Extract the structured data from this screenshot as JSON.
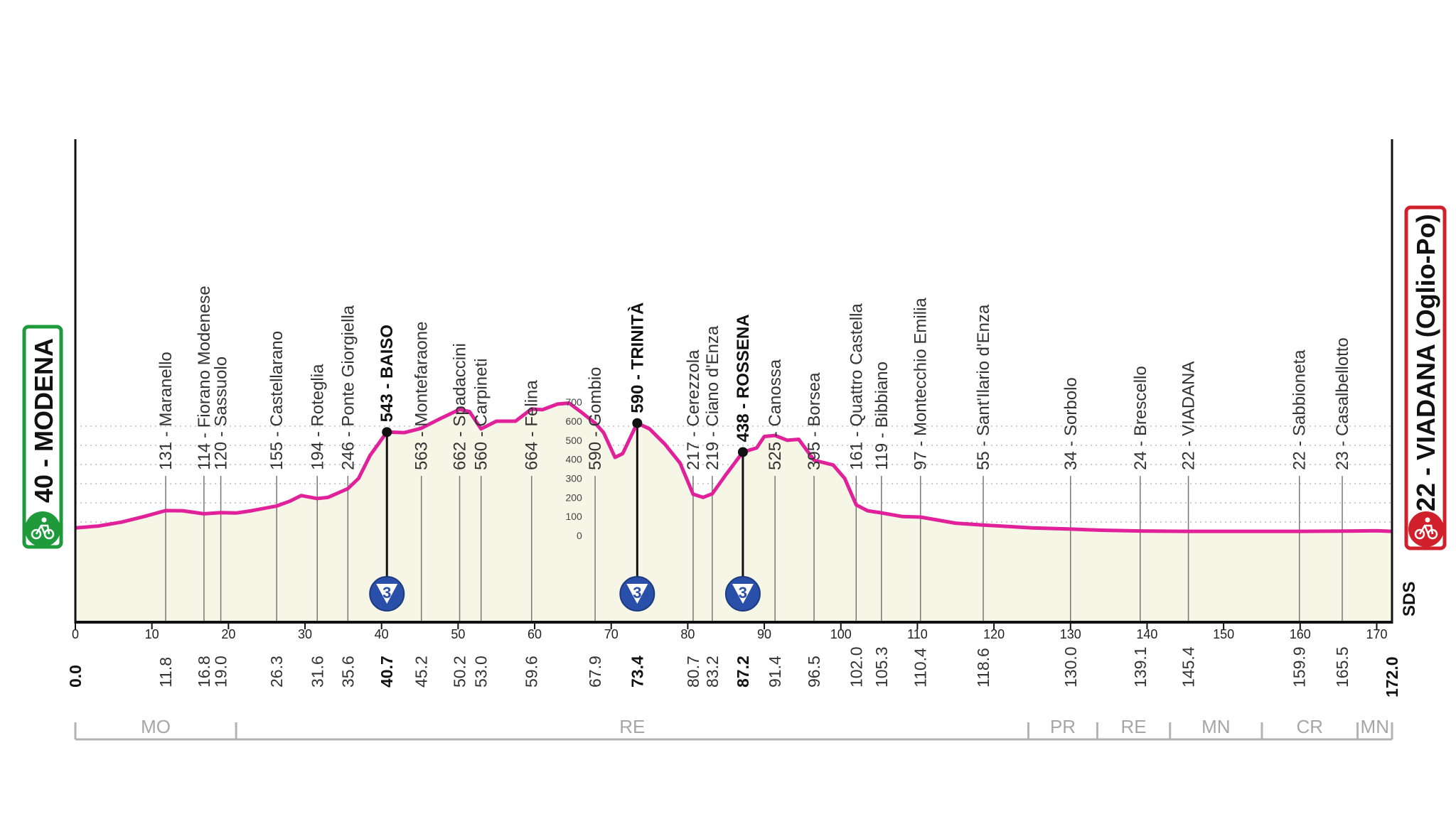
{
  "chart_data": {
    "type": "area",
    "start": {
      "name": "MODENA",
      "altitude": "40",
      "km": "0.0",
      "color": "#1f9a3a"
    },
    "finish": {
      "name": "VIADANA (Oglio-Po)",
      "altitude": "22",
      "km": "172.0",
      "color": "#d0202b"
    },
    "xlim": [
      0,
      172
    ],
    "ylim": [
      0,
      700
    ],
    "x_ticks": [
      0,
      10,
      20,
      30,
      40,
      50,
      60,
      70,
      80,
      90,
      100,
      110,
      120,
      130,
      140,
      150,
      160,
      170
    ],
    "altitude_ticks": [
      0,
      100,
      200,
      300,
      400,
      500,
      600,
      700
    ],
    "profile": [
      [
        0,
        40
      ],
      [
        3,
        50
      ],
      [
        6,
        70
      ],
      [
        9,
        100
      ],
      [
        11.8,
        131
      ],
      [
        14,
        130
      ],
      [
        16.8,
        114
      ],
      [
        19,
        120
      ],
      [
        21,
        118
      ],
      [
        23,
        130
      ],
      [
        26.3,
        155
      ],
      [
        28,
        180
      ],
      [
        29.5,
        210
      ],
      [
        31.6,
        194
      ],
      [
        33,
        200
      ],
      [
        35.6,
        246
      ],
      [
        37,
        300
      ],
      [
        38.5,
        420
      ],
      [
        40.7,
        543
      ],
      [
        43,
        540
      ],
      [
        45.2,
        563
      ],
      [
        47.5,
        610
      ],
      [
        50.2,
        662
      ],
      [
        51.5,
        650
      ],
      [
        53,
        560
      ],
      [
        55,
        600
      ],
      [
        57.5,
        600
      ],
      [
        59.6,
        664
      ],
      [
        61,
        660
      ],
      [
        63,
        690
      ],
      [
        64.5,
        695
      ],
      [
        66,
        650
      ],
      [
        67.9,
        590
      ],
      [
        69,
        540
      ],
      [
        70.5,
        410
      ],
      [
        71.5,
        430
      ],
      [
        73.4,
        590
      ],
      [
        75,
        560
      ],
      [
        77,
        480
      ],
      [
        79,
        380
      ],
      [
        80.7,
        217
      ],
      [
        82,
        200
      ],
      [
        83.2,
        219
      ],
      [
        85,
        320
      ],
      [
        87.2,
        438
      ],
      [
        89,
        460
      ],
      [
        90,
        520
      ],
      [
        91.4,
        525
      ],
      [
        93,
        500
      ],
      [
        94.5,
        505
      ],
      [
        96.5,
        395
      ],
      [
        99,
        370
      ],
      [
        100.5,
        300
      ],
      [
        102,
        161
      ],
      [
        103.5,
        130
      ],
      [
        105.3,
        119
      ],
      [
        108,
        100
      ],
      [
        110.4,
        97
      ],
      [
        115,
        65
      ],
      [
        118.6,
        55
      ],
      [
        125,
        40
      ],
      [
        130,
        34
      ],
      [
        134,
        28
      ],
      [
        139.1,
        24
      ],
      [
        145.4,
        22
      ],
      [
        150,
        22
      ],
      [
        155,
        22
      ],
      [
        159.9,
        22
      ],
      [
        165.5,
        23
      ],
      [
        170,
        25
      ],
      [
        172,
        22
      ]
    ],
    "waypoints": [
      {
        "km": "11.8",
        "km_value": 11.8,
        "alt": 131,
        "label": "131 - Maranello"
      },
      {
        "km": "16.8",
        "km_value": 16.8,
        "alt": 114,
        "label": "114 - Fiorano Modenese"
      },
      {
        "km": "19.0",
        "km_value": 19.0,
        "alt": 120,
        "label": "120 - Sassuolo"
      },
      {
        "km": "26.3",
        "km_value": 26.3,
        "alt": 155,
        "label": "155 - Castellarano"
      },
      {
        "km": "31.6",
        "km_value": 31.6,
        "alt": 194,
        "label": "194 - Roteglia"
      },
      {
        "km": "35.6",
        "km_value": 35.6,
        "alt": 246,
        "label": "246 - Ponte Giorgiella"
      },
      {
        "km": "40.7",
        "km_value": 40.7,
        "alt": 543,
        "label": "543 - BAISO",
        "climb": true,
        "category": "3"
      },
      {
        "km": "45.2",
        "km_value": 45.2,
        "alt": 563,
        "label": "563 - Montefaraone"
      },
      {
        "km": "50.2",
        "km_value": 50.2,
        "alt": 662,
        "label": "662 - Spadaccini"
      },
      {
        "km": "53.0",
        "km_value": 53.0,
        "alt": 560,
        "label": "560 - Carpineti"
      },
      {
        "km": "59.6",
        "km_value": 59.6,
        "alt": 664,
        "label": "664 - Felina"
      },
      {
        "km": "67.9",
        "km_value": 67.9,
        "alt": 590,
        "label": "590 - Gombio"
      },
      {
        "km": "73.4",
        "km_value": 73.4,
        "alt": 590,
        "label": "590 - TRINITÀ",
        "climb": true,
        "category": "3"
      },
      {
        "km": "80.7",
        "km_value": 80.7,
        "alt": 217,
        "label": "217 - Cerezzola"
      },
      {
        "km": "83.2",
        "km_value": 83.2,
        "alt": 219,
        "label": "219 - Ciano d'Enza"
      },
      {
        "km": "87.2",
        "km_value": 87.2,
        "alt": 438,
        "label": "438 - ROSSENA",
        "climb": true,
        "category": "3"
      },
      {
        "km": "91.4",
        "km_value": 91.4,
        "alt": 525,
        "label": "525 - Canossa"
      },
      {
        "km": "96.5",
        "km_value": 96.5,
        "alt": 395,
        "label": "395 - Borsea"
      },
      {
        "km": "102.0",
        "km_value": 102.0,
        "alt": 161,
        "label": "161 - Quattro Castella"
      },
      {
        "km": "105.3",
        "km_value": 105.3,
        "alt": 119,
        "label": "119 - Bibbiano"
      },
      {
        "km": "110.4",
        "km_value": 110.4,
        "alt": 97,
        "label": "97 - Montecchio Emilia"
      },
      {
        "km": "118.6",
        "km_value": 118.6,
        "alt": 55,
        "label": "55 - Sant'Ilario d'Enza"
      },
      {
        "km": "130.0",
        "km_value": 130.0,
        "alt": 34,
        "label": "34 - Sorbolo"
      },
      {
        "km": "139.1",
        "km_value": 139.1,
        "alt": 24,
        "label": "24 - Brescello"
      },
      {
        "km": "145.4",
        "km_value": 145.4,
        "alt": 22,
        "label": "22 - VIADANA"
      },
      {
        "km": "159.9",
        "km_value": 159.9,
        "alt": 22,
        "label": "22 - Sabbioneta"
      },
      {
        "km": "165.5",
        "km_value": 165.5,
        "alt": 23,
        "label": "23 - Casalbellotto"
      }
    ],
    "provinces": [
      {
        "label": "MO",
        "from": 0,
        "to": 21
      },
      {
        "label": "RE",
        "from": 21,
        "to": 124.5
      },
      {
        "label": "PR",
        "from": 124.5,
        "to": 133.5
      },
      {
        "label": "RE",
        "from": 133.5,
        "to": 143
      },
      {
        "label": "MN",
        "from": 143,
        "to": 155
      },
      {
        "label": "CR",
        "from": 155,
        "to": 167.5
      },
      {
        "label": "MN",
        "from": 167.5,
        "to": 172
      }
    ],
    "watermark": "SDS",
    "colors": {
      "profile": "#e0219a",
      "fill": "#f6f6e6",
      "axis": "#111111",
      "grid": "#9b9b9b",
      "category_badge": "#2a4fa8"
    },
    "icons": {
      "start": "cyclist-icon",
      "finish": "cyclist-icon",
      "category": "kom-badge-icon"
    }
  }
}
